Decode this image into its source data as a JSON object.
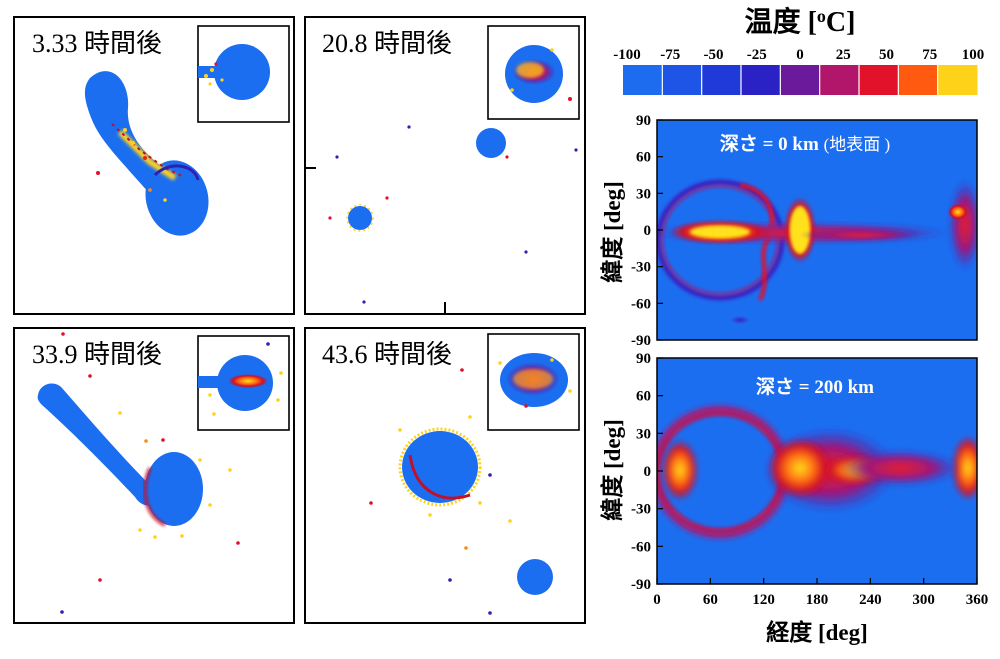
{
  "panels": [
    {
      "label": "3.33 時間後"
    },
    {
      "label": "20.8 時間後"
    },
    {
      "label": "33.9 時間後"
    },
    {
      "label": "43.6 時間後"
    }
  ],
  "colorbar": {
    "title": "温度 [",
    "title_sup": "o",
    "title_unit": "C]",
    "ticks": [
      "-100",
      "-75",
      "-50",
      "-25",
      "0",
      "25",
      "50",
      "75",
      "100"
    ],
    "colors": [
      "#1d6cf0",
      "#1e55e6",
      "#1f3ad8",
      "#2a22c4",
      "#6a1a9a",
      "#b1166a",
      "#e1122a",
      "#ff5a10",
      "#ffd21a"
    ]
  },
  "chart_data": [
    {
      "type": "heatmap",
      "title": "深さ = 0 km",
      "subtitle": "(地表面 )",
      "xlabel": "経度 [deg]",
      "ylabel": "緯度 [deg]",
      "xlim": [
        0,
        360
      ],
      "ylim": [
        -90,
        90
      ],
      "xticks": [
        "0",
        "60",
        "120",
        "180",
        "240",
        "300",
        "360"
      ],
      "yticks": [
        "90",
        "60",
        "30",
        "0",
        "-30",
        "-60",
        "-90"
      ]
    },
    {
      "type": "heatmap",
      "title": "深さ = 200 km",
      "xlabel": "経度 [deg]",
      "ylabel": "緯度 [deg]",
      "xlim": [
        0,
        360
      ],
      "ylim": [
        -90,
        90
      ],
      "xticks": [
        "0",
        "60",
        "120",
        "180",
        "240",
        "300",
        "360"
      ],
      "yticks": [
        "90",
        "60",
        "30",
        "0",
        "-30",
        "-60",
        "-90"
      ]
    }
  ]
}
